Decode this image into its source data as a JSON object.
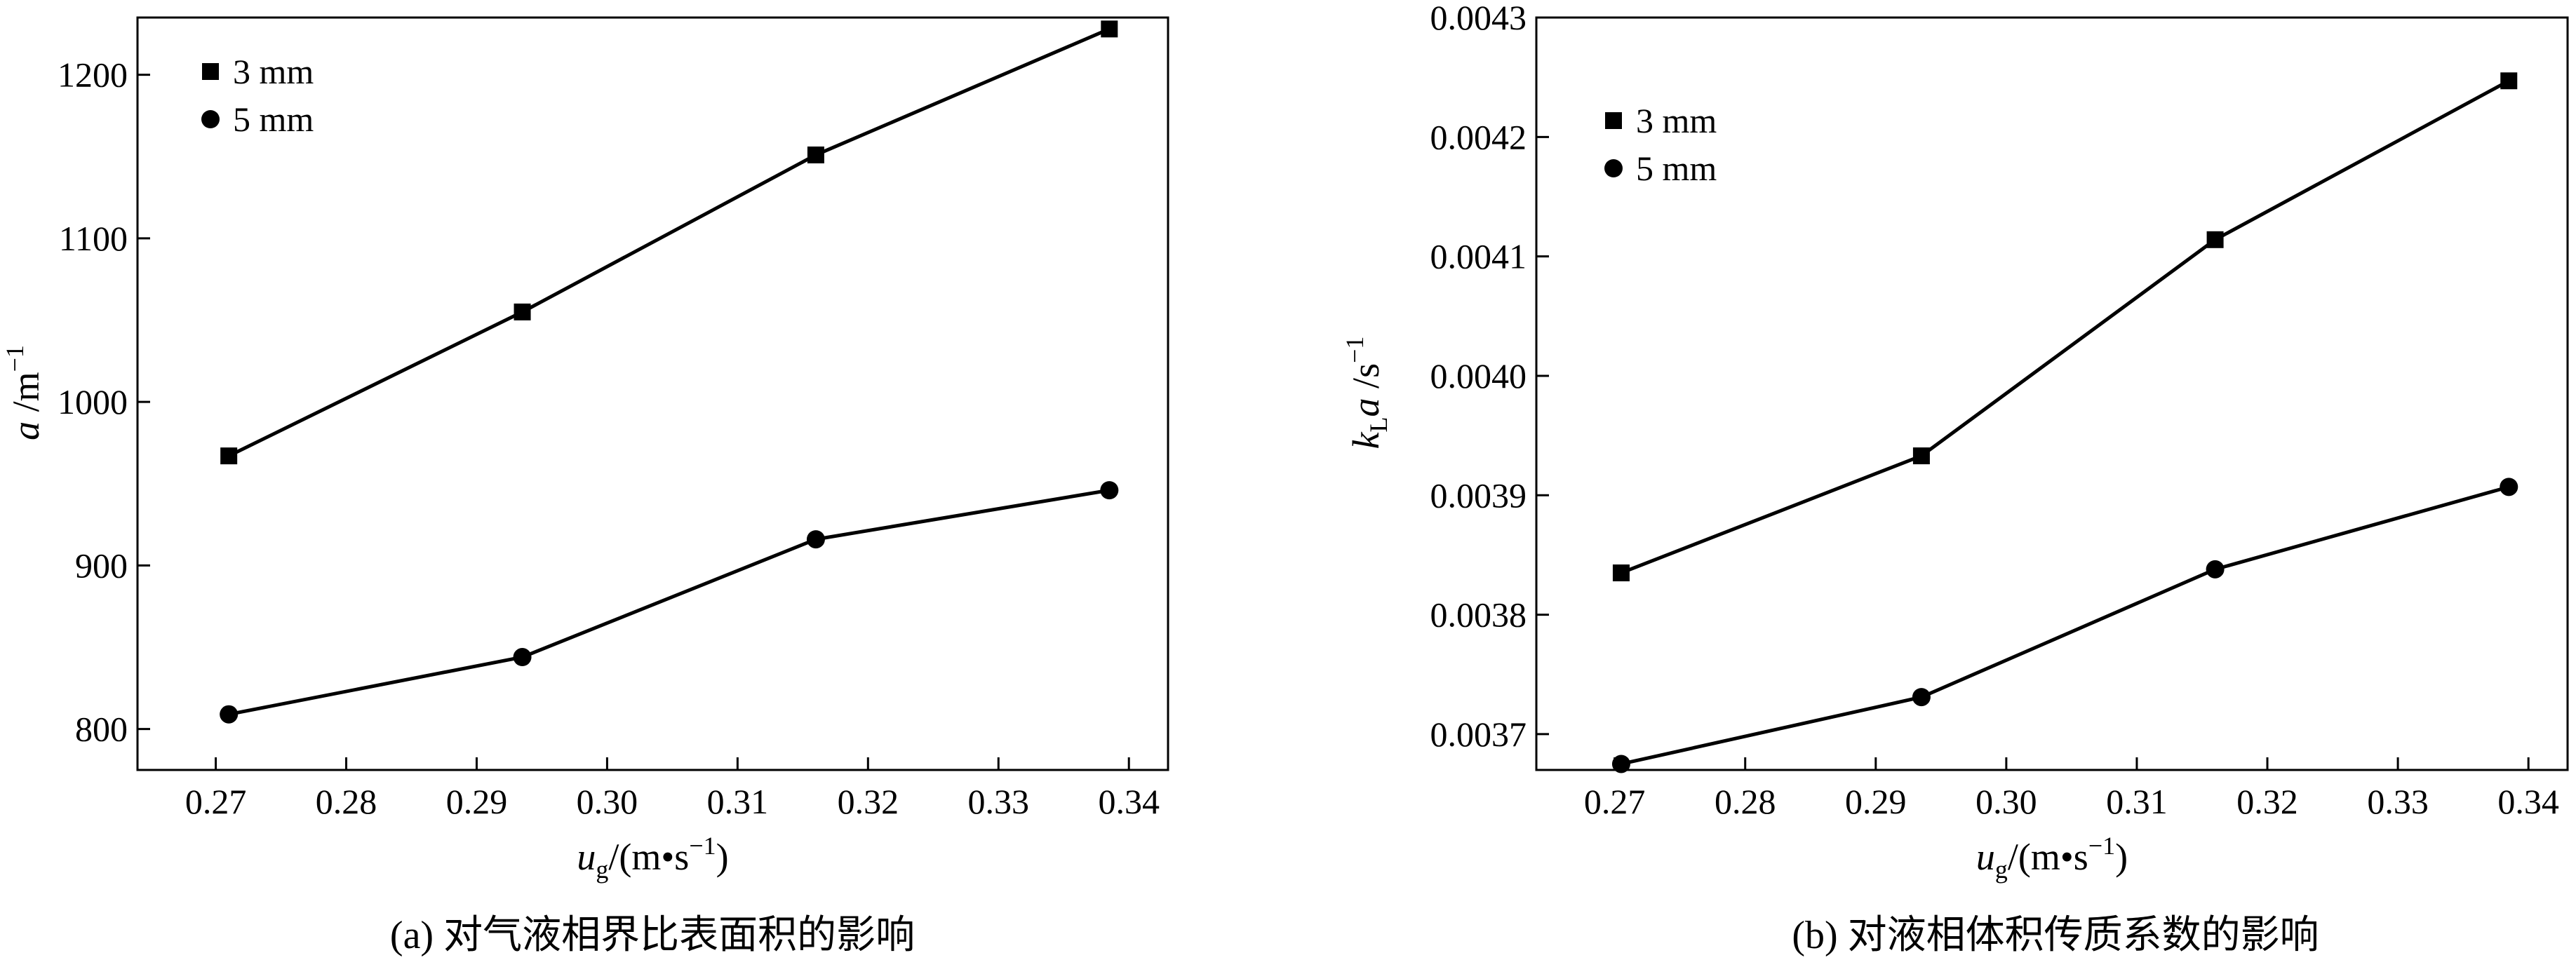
{
  "chart_data": [
    {
      "type": "line",
      "caption": "(a) 对气液相界比表面积的影响",
      "xlabel": {
        "main": "u",
        "sub": "g",
        "rest": "/(m•s",
        "sup": "−1",
        "close": ")"
      },
      "ylabel": {
        "main": "a",
        "rest": " /m",
        "sup": "−1"
      },
      "xlim": [
        0.264,
        0.343
      ],
      "ylim": [
        775,
        1235
      ],
      "xticks": [
        "0.27",
        "0.28",
        "0.29",
        "0.30",
        "0.31",
        "0.32",
        "0.33",
        "0.34"
      ],
      "yticks": [
        "800",
        "900",
        "1000",
        "1100",
        "1200"
      ],
      "legend": {
        "position": "top-left"
      },
      "series": [
        {
          "name": "3 mm",
          "marker": "square",
          "x": [
            0.271,
            0.2935,
            0.316,
            0.3385
          ],
          "y": [
            967,
            1055,
            1151,
            1228
          ]
        },
        {
          "name": "5 mm",
          "marker": "circle",
          "x": [
            0.271,
            0.2935,
            0.316,
            0.3385
          ],
          "y": [
            809,
            844,
            916,
            946
          ]
        }
      ]
    },
    {
      "type": "line",
      "caption": "(b) 对液相体积传质系数的影响",
      "xlabel": {
        "main": "u",
        "sub": "g",
        "rest": "/(m•s",
        "sup": "−1",
        "close": ")"
      },
      "ylabel": {
        "main": "k",
        "sub": "L",
        "main2": "a",
        "rest": " /s",
        "sup": "−1"
      },
      "xlim": [
        0.264,
        0.343
      ],
      "ylim": [
        0.00367,
        0.0043
      ],
      "xticks": [
        "0.27",
        "0.28",
        "0.29",
        "0.30",
        "0.31",
        "0.32",
        "0.33",
        "0.34"
      ],
      "yticks": [
        "0.0037",
        "0.0038",
        "0.0039",
        "0.0040",
        "0.0041",
        "0.0042",
        "0.0043"
      ],
      "legend": {
        "position": "top-left"
      },
      "series": [
        {
          "name": "3 mm",
          "marker": "square",
          "x": [
            0.2705,
            0.2935,
            0.316,
            0.3385
          ],
          "y": [
            0.003835,
            0.003933,
            0.004114,
            0.004247
          ]
        },
        {
          "name": "5 mm",
          "marker": "circle",
          "x": [
            0.2705,
            0.2935,
            0.316,
            0.3385
          ],
          "y": [
            0.003675,
            0.003731,
            0.003838,
            0.003907
          ]
        }
      ]
    }
  ]
}
